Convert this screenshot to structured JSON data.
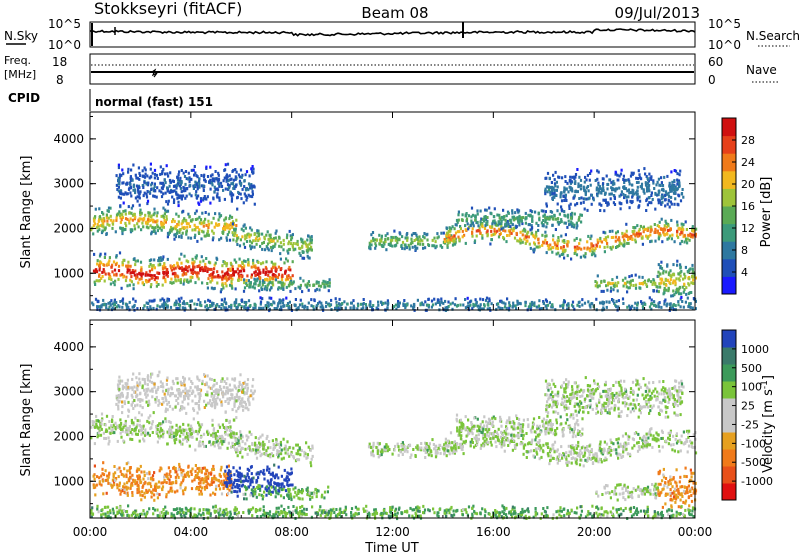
{
  "header": {
    "station": "Stokkseyri (fitACF)",
    "beam": "Beam 08",
    "date": "09/Jul/2013"
  },
  "nsky_panel": {
    "left_label": "N.Sky",
    "right_label": "N.Search",
    "left_ticks": [
      "10^5",
      "10^0"
    ],
    "right_ticks": [
      "10^5",
      "10^0"
    ]
  },
  "freq_panel": {
    "label_line1": "Freq.",
    "label_line2": "[MHz]",
    "left_ticks": [
      "18",
      "8"
    ],
    "right_label": "Nave",
    "right_ticks": [
      "60",
      "0"
    ]
  },
  "cpid_panel": {
    "label": "CPID",
    "value": "normal (fast) 151"
  },
  "chart_data": [
    {
      "type": "heatmap",
      "name": "power",
      "ylabel": "Slant Range [km]",
      "yticks": [
        1000,
        2000,
        3000,
        4000
      ],
      "ylim": [
        180,
        4600
      ],
      "x_ticks": [
        "00:00",
        "04:00",
        "08:00",
        "12:00",
        "16:00",
        "20:00",
        "00:00"
      ],
      "xlim_hours": [
        0,
        24
      ],
      "colorbar_label": "Power [dB]",
      "colorbar_ticks": [
        "4",
        "8",
        "12",
        "16",
        "20",
        "24",
        "28"
      ],
      "colorbar_colors": [
        "#1a1aff",
        "#1f4fb8",
        "#2e78a0",
        "#3c9a7a",
        "#5aaa55",
        "#9ec43a",
        "#f2b81f",
        "#f07a1a",
        "#e6401a",
        "#d01010"
      ]
    },
    {
      "type": "heatmap",
      "name": "velocity",
      "ylabel": "Slant Range [km]",
      "yticks": [
        1000,
        2000,
        3000,
        4000
      ],
      "ylim": [
        180,
        4600
      ],
      "x_ticks": [
        "00:00",
        "04:00",
        "08:00",
        "12:00",
        "16:00",
        "20:00",
        "00:00"
      ],
      "xlabel": "Time UT",
      "xlim_hours": [
        0,
        24
      ],
      "colorbar_label": "Velocity [m s^-1]",
      "colorbar_ticks": [
        "1000",
        "500",
        "100",
        "25",
        "-25",
        "-100",
        "-500",
        "-1000"
      ],
      "colorbar_colors": [
        "#2244bb",
        "#3a7a6a",
        "#3c9a5a",
        "#7ac43a",
        "#c8c8c8",
        "#c8c8c8",
        "#e6a020",
        "#f07a1a",
        "#e8501a",
        "#e01010"
      ]
    }
  ]
}
